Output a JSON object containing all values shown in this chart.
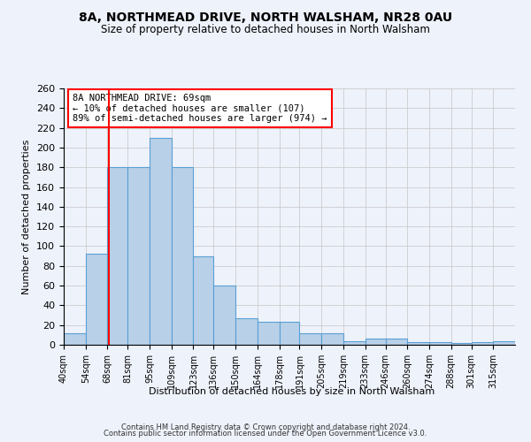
{
  "title": "8A, NORTHMEAD DRIVE, NORTH WALSHAM, NR28 0AU",
  "subtitle": "Size of property relative to detached houses in North Walsham",
  "xlabel": "Distribution of detached houses by size in North Walsham",
  "ylabel": "Number of detached properties",
  "bins": [
    40,
    54,
    68,
    81,
    95,
    109,
    123,
    136,
    150,
    164,
    178,
    191,
    205,
    219,
    233,
    246,
    260,
    274,
    288,
    301,
    315
  ],
  "bin_labels": [
    "40sqm",
    "54sqm",
    "68sqm",
    "81sqm",
    "95sqm",
    "109sqm",
    "123sqm",
    "136sqm",
    "150sqm",
    "164sqm",
    "178sqm",
    "191sqm",
    "205sqm",
    "219sqm",
    "233sqm",
    "246sqm",
    "260sqm",
    "274sqm",
    "288sqm",
    "301sqm",
    "315sqm"
  ],
  "counts": [
    12,
    92,
    180,
    180,
    210,
    180,
    90,
    60,
    27,
    23,
    23,
    12,
    12,
    4,
    6,
    6,
    3,
    3,
    2,
    3,
    4
  ],
  "bar_color": "#b8d0e8",
  "bar_edge_color": "#5a9fd4",
  "property_size": 69,
  "red_line_x": 69,
  "annotation_text": "8A NORTHMEAD DRIVE: 69sqm\n← 10% of detached houses are smaller (107)\n89% of semi-detached houses are larger (974) →",
  "annotation_box_color": "white",
  "annotation_box_edge_color": "red",
  "ylim": [
    0,
    260
  ],
  "yticks": [
    0,
    20,
    40,
    60,
    80,
    100,
    120,
    140,
    160,
    180,
    200,
    220,
    240,
    260
  ],
  "footer_line1": "Contains HM Land Registry data © Crown copyright and database right 2024.",
  "footer_line2": "Contains public sector information licensed under the Open Government Licence v3.0.",
  "bg_color": "#eef2fb",
  "grid_color": "#cccccc"
}
